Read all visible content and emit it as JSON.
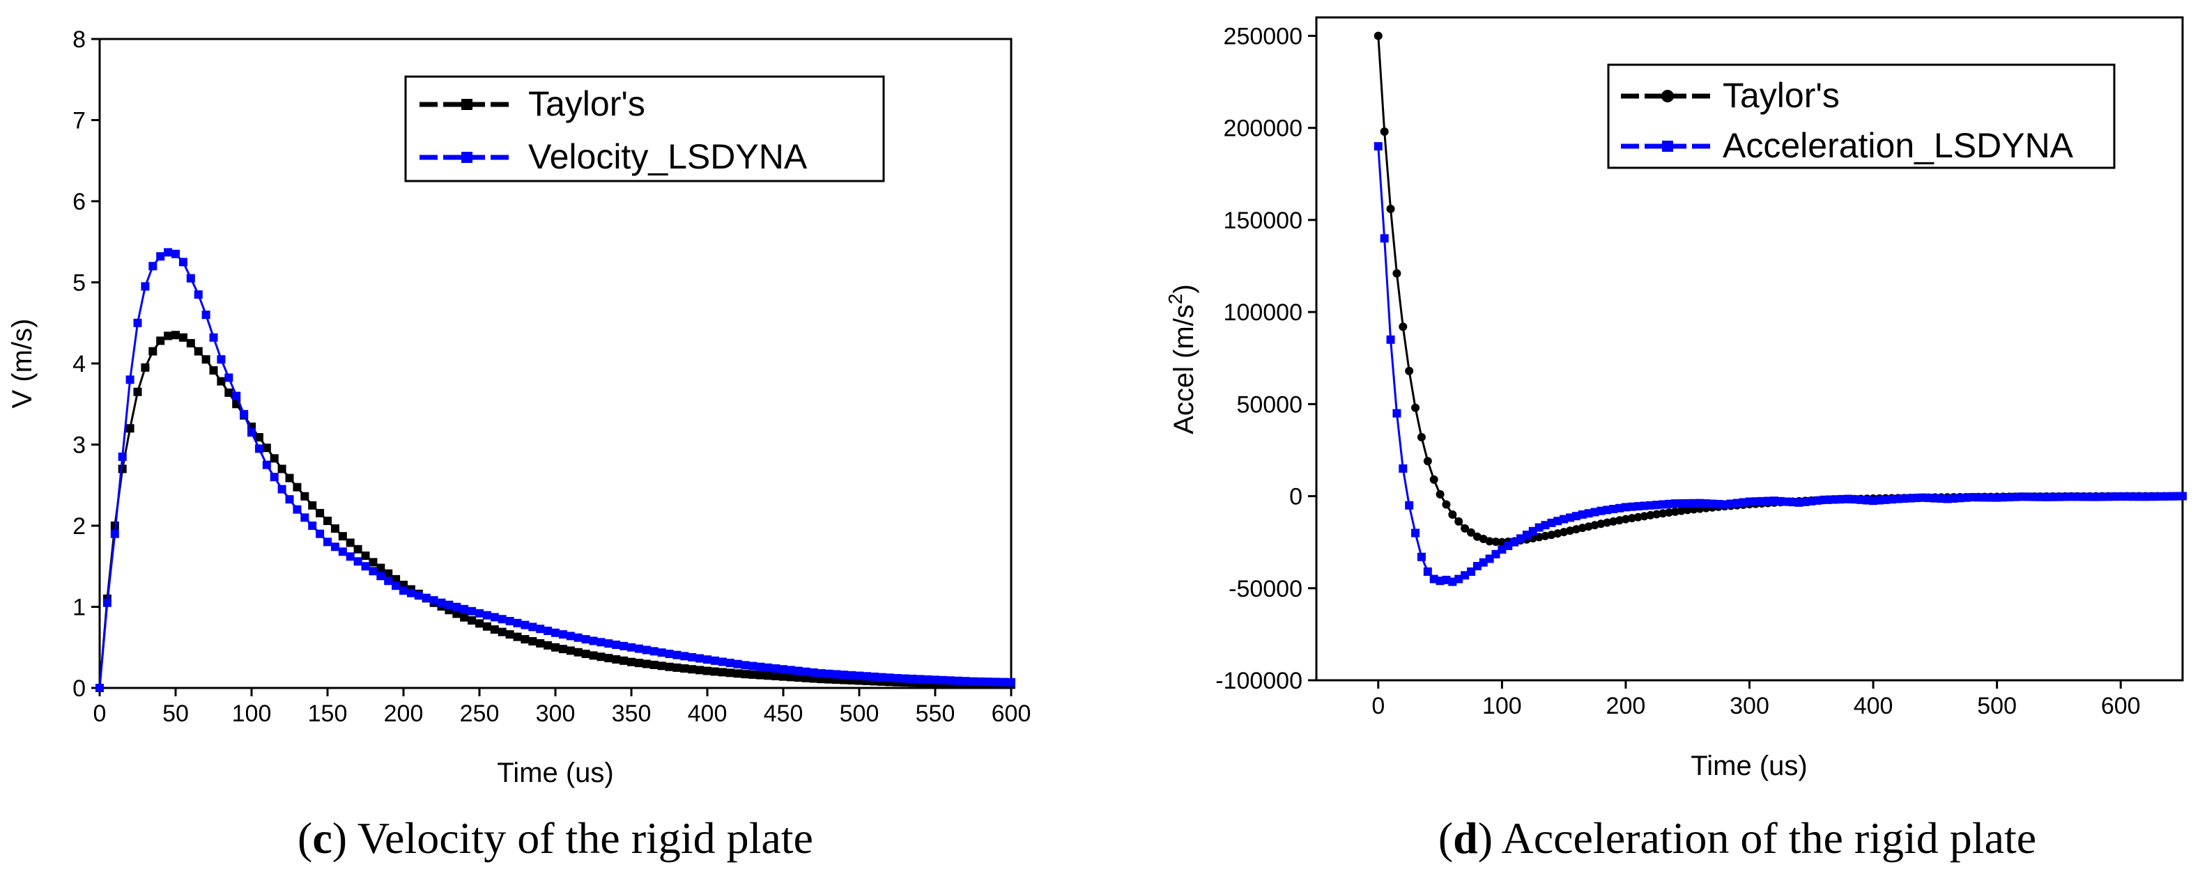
{
  "chart_data": [
    {
      "type": "line",
      "panel_label": "c",
      "caption": "Velocity of the rigid plate",
      "xlabel": "Time (us)",
      "ylabel": "V (m/s)",
      "xlim": [
        0,
        600
      ],
      "ylim": [
        0,
        8
      ],
      "xticks": [
        0,
        50,
        100,
        150,
        200,
        250,
        300,
        350,
        400,
        450,
        500,
        550,
        600
      ],
      "yticks": [
        0,
        1,
        2,
        3,
        4,
        5,
        6,
        7,
        8
      ],
      "legend_position": "top-right",
      "series": [
        {
          "name": "Taylor's",
          "color": "#000000",
          "marker": "square",
          "x": [
            0,
            5,
            10,
            15,
            20,
            25,
            30,
            35,
            40,
            45,
            50,
            55,
            60,
            70,
            80,
            90,
            100,
            120,
            140,
            160,
            180,
            200,
            220,
            240,
            260,
            280,
            300,
            325,
            350,
            375,
            400,
            425,
            450,
            475,
            500,
            525,
            550,
            575,
            600
          ],
          "y": [
            0,
            1.1,
            2.0,
            2.7,
            3.2,
            3.65,
            3.95,
            4.15,
            4.28,
            4.34,
            4.35,
            4.32,
            4.25,
            4.05,
            3.78,
            3.5,
            3.22,
            2.7,
            2.25,
            1.87,
            1.55,
            1.27,
            1.05,
            0.87,
            0.72,
            0.6,
            0.5,
            0.4,
            0.32,
            0.26,
            0.21,
            0.17,
            0.14,
            0.11,
            0.09,
            0.07,
            0.06,
            0.05,
            0.04
          ]
        },
        {
          "name": "Velocity_LSDYNA",
          "color": "#0000ff",
          "marker": "square",
          "x": [
            0,
            5,
            10,
            15,
            20,
            25,
            30,
            35,
            40,
            45,
            50,
            55,
            60,
            65,
            70,
            75,
            80,
            90,
            100,
            110,
            120,
            130,
            140,
            150,
            175,
            200,
            225,
            250,
            275,
            300,
            325,
            350,
            375,
            400,
            425,
            450,
            475,
            500,
            525,
            550,
            575,
            600
          ],
          "y": [
            0,
            1.05,
            1.9,
            2.85,
            3.8,
            4.5,
            4.95,
            5.2,
            5.32,
            5.37,
            5.35,
            5.25,
            5.05,
            4.85,
            4.6,
            4.32,
            4.05,
            3.6,
            3.15,
            2.75,
            2.45,
            2.2,
            2.0,
            1.8,
            1.5,
            1.2,
            1.05,
            0.92,
            0.8,
            0.68,
            0.58,
            0.5,
            0.42,
            0.35,
            0.28,
            0.23,
            0.18,
            0.15,
            0.12,
            0.1,
            0.08,
            0.07
          ]
        }
      ]
    },
    {
      "type": "line",
      "panel_label": "d",
      "caption": "Acceleration of the rigid plate",
      "xlabel": "Time (us)",
      "ylabel": "Accel (m/s",
      "ylabel_superscript": "2",
      "ylabel_close": ")",
      "xlim": [
        -50,
        650
      ],
      "ylim": [
        -100000,
        260000
      ],
      "xticks": [
        0,
        100,
        200,
        300,
        400,
        500,
        600
      ],
      "yticks": [
        -100000,
        -50000,
        0,
        50000,
        100000,
        150000,
        200000,
        250000
      ],
      "legend_position": "top-right",
      "series": [
        {
          "name": "Taylor's",
          "color": "#000000",
          "marker": "circle",
          "x": [
            0,
            5,
            10,
            15,
            20,
            25,
            30,
            35,
            40,
            45,
            50,
            60,
            70,
            80,
            90,
            100,
            110,
            120,
            140,
            160,
            180,
            200,
            225,
            250,
            275,
            300,
            325,
            350,
            375,
            400,
            450,
            500,
            550,
            600,
            650
          ],
          "y": [
            250000,
            198000,
            156000,
            121000,
            92000,
            68000,
            48000,
            32000,
            19000,
            9000,
            1000,
            -10000,
            -17500,
            -22000,
            -24500,
            -25000,
            -24500,
            -23500,
            -21000,
            -18000,
            -15000,
            -12500,
            -9800,
            -7500,
            -5800,
            -4400,
            -3300,
            -2400,
            -1800,
            -1300,
            -700,
            -350,
            -150,
            -50,
            0
          ]
        },
        {
          "name": "Acceleration_LSDYNA",
          "color": "#0000ff",
          "marker": "square",
          "x": [
            0,
            5,
            10,
            15,
            20,
            25,
            30,
            35,
            40,
            45,
            50,
            55,
            60,
            65,
            70,
            75,
            80,
            90,
            100,
            110,
            120,
            130,
            140,
            150,
            165,
            180,
            200,
            220,
            240,
            260,
            280,
            300,
            320,
            340,
            360,
            380,
            400,
            420,
            440,
            460,
            480,
            500,
            520,
            540,
            560,
            580,
            600,
            620,
            650
          ],
          "y": [
            190000,
            140000,
            85000,
            45000,
            15000,
            -5000,
            -20000,
            -33000,
            -41000,
            -45000,
            -46000,
            -45500,
            -46500,
            -45000,
            -43000,
            -41000,
            -38000,
            -34000,
            -29000,
            -25000,
            -21000,
            -17000,
            -14500,
            -12500,
            -10000,
            -8000,
            -6000,
            -5000,
            -4000,
            -3800,
            -4500,
            -3000,
            -2500,
            -3500,
            -2000,
            -1500,
            -2500,
            -1500,
            -800,
            -1500,
            -600,
            -800,
            -300,
            -500,
            -300,
            -400,
            -200,
            -300,
            0
          ]
        }
      ]
    }
  ]
}
